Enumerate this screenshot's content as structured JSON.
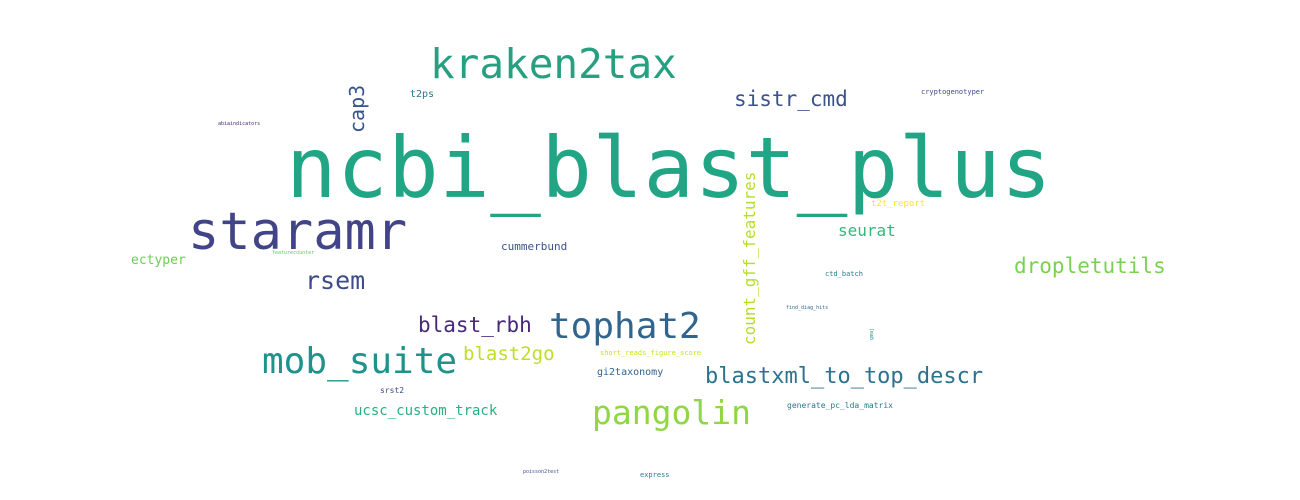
{
  "word_cloud": {
    "words": [
      {
        "id": "ncbi_blast_plus",
        "text": "ncbi_blast_plus",
        "color": "#21a585"
      },
      {
        "id": "staramr",
        "text": "staramr",
        "color": "#414487"
      },
      {
        "id": "kraken2tax",
        "text": "kraken2tax",
        "color": "#27a082"
      },
      {
        "id": "tophat2",
        "text": "tophat2",
        "color": "#32658e"
      },
      {
        "id": "mob_suite",
        "text": "mob_suite",
        "color": "#20928c"
      },
      {
        "id": "pangolin",
        "text": "pangolin",
        "color": "#8fd744"
      },
      {
        "id": "blastxml_to_top_descr",
        "text": "blastxml_to_top_descr",
        "color": "#2c728e"
      },
      {
        "id": "dropletutils",
        "text": "dropletutils",
        "color": "#7ad151"
      },
      {
        "id": "sistr_cmd",
        "text": "sistr_cmd",
        "color": "#3b528b"
      },
      {
        "id": "rsem",
        "text": "rsem",
        "color": "#3e4a89"
      },
      {
        "id": "blast_rbh",
        "text": "blast_rbh",
        "color": "#482878"
      },
      {
        "id": "count_gff_features",
        "text": "count_gff_features",
        "color": "#b5de2b"
      },
      {
        "id": "blast2go",
        "text": "blast2go",
        "color": "#bddf26"
      },
      {
        "id": "cap3",
        "text": "cap3",
        "color": "#39568c"
      },
      {
        "id": "seurat",
        "text": "seurat",
        "color": "#35b779"
      },
      {
        "id": "ucsc_custom_track",
        "text": "ucsc_custom_track",
        "color": "#29af7f"
      },
      {
        "id": "ectyper",
        "text": "ectyper",
        "color": "#6ccd5a"
      },
      {
        "id": "cummerbund",
        "text": "cummerbund",
        "color": "#3b528b"
      },
      {
        "id": "gi2taxonomy",
        "text": "gi2taxonomy",
        "color": "#33638d"
      },
      {
        "id": "t2ps",
        "text": "t2ps",
        "color": "#2a788e"
      },
      {
        "id": "t2t_report",
        "text": "t2t_report",
        "color": "#fde725"
      },
      {
        "id": "cryptogenotyper",
        "text": "cryptogenotyper",
        "color": "#3e4a89"
      },
      {
        "id": "short_reads_figure_score",
        "text": "short_reads_figure_score",
        "color": "#c8e020"
      },
      {
        "id": "generate_pc_lda_matrix",
        "text": "generate_pc_lda_matrix",
        "color": "#2a788e"
      },
      {
        "id": "srst2",
        "text": "srst2",
        "color": "#3e4a89"
      },
      {
        "id": "ctd_batch",
        "text": "ctd_batch",
        "color": "#287c8e"
      },
      {
        "id": "find_diag_hits",
        "text": "find_diag_hits",
        "color": "#31688e"
      },
      {
        "id": "express",
        "text": "express",
        "color": "#2a788e"
      },
      {
        "id": "abiaindicators",
        "text": "abiaindicators",
        "color": "#482475"
      },
      {
        "id": "featurecounter",
        "text": "featurecounter",
        "color": "#5ec962"
      },
      {
        "id": "poisson2test",
        "text": "poisson2test",
        "color": "#3b528b"
      },
      {
        "id": "gmaj",
        "text": "gmaj",
        "color": "#1f9e89"
      }
    ]
  }
}
